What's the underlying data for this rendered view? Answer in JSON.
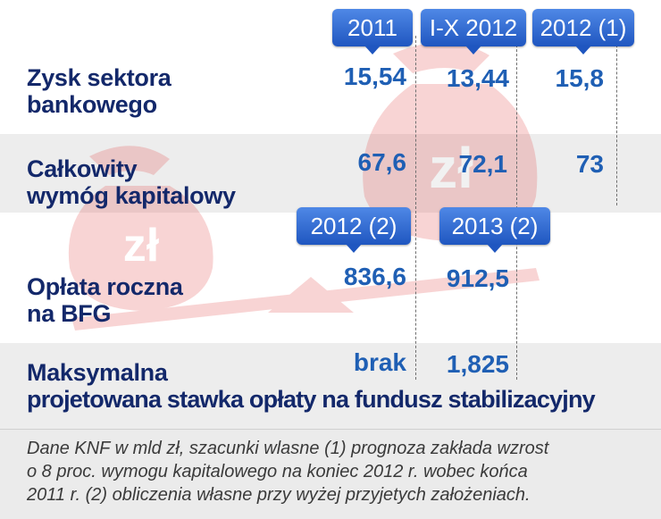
{
  "header": {
    "col_2011": "2011",
    "col_ix2012": "I-X 2012",
    "col_2012_1": "2012 (1)",
    "col_2012_2": "2012 (2)",
    "col_2013_2": "2013 (2)"
  },
  "rows": {
    "zysk": {
      "label_line1": "Zysk sektora",
      "label_line2": "bankowego",
      "v2011": "15,54",
      "vix2012": "13,44",
      "v2012_1": "15,8"
    },
    "wymog": {
      "label_line1": "Całkowity",
      "label_line2": "wymóg kapitalowy",
      "v2011": "67,6",
      "vix2012": "72,1",
      "v2012_1": "73"
    },
    "oplata": {
      "label_line1": "Opłata roczna",
      "label_line2": "na BFG",
      "v2012_2": "836,6",
      "v2013_2": "912,5"
    },
    "maks": {
      "label_line1": "Maksymalna",
      "label_line2": "projetowana stawka opłaty na fundusz stabilizacyjny",
      "v2012_2": "brak",
      "v2013_2": "1,825"
    }
  },
  "illustration": {
    "bag_icon_text": "zł",
    "color": "#e0423f"
  },
  "footnote": {
    "line1": "Dane KNF w mld zł, szacunki wlasne (1) prognoza zakłada wzrost",
    "line2": "o 8 proc. wymogu kapitalowego na koniec 2012 r. wobec końca",
    "line3": "2011 r. (2) obliczenia własne przy wyżej przyjetych założeniach."
  },
  "colors": {
    "label": "#13286a",
    "value": "#1f5fb4",
    "tab": "#2f66cc",
    "band": "#ededed"
  }
}
